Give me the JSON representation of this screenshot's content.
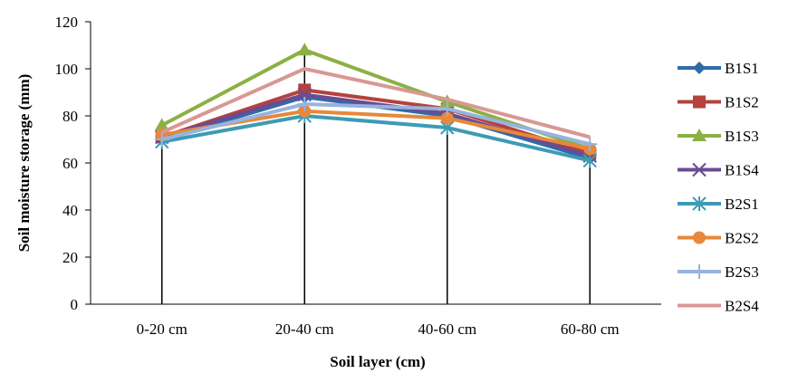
{
  "chart_data": {
    "type": "line",
    "title": "",
    "xlabel": "Soil layer (cm)",
    "ylabel": "Soil moisture storage (mm)",
    "categories": [
      "0-20 cm",
      "20-40 cm",
      "40-60 cm",
      "60-80 cm"
    ],
    "ylim": [
      0,
      120
    ],
    "yticks": [
      0,
      20,
      40,
      60,
      80,
      100,
      120
    ],
    "grid": false,
    "legend_position": "right",
    "drop_lines": true,
    "series": [
      {
        "name": "B1S1",
        "values": [
          70,
          88,
          80,
          62
        ],
        "color": "#2E6CA8",
        "marker": "diamond"
      },
      {
        "name": "B1S2",
        "values": [
          71,
          91,
          83,
          64
        ],
        "color": "#B5413E",
        "marker": "square"
      },
      {
        "name": "B1S3",
        "values": [
          76,
          108,
          86,
          66
        ],
        "color": "#8CB044",
        "marker": "triangle"
      },
      {
        "name": "B1S4",
        "values": [
          71,
          89,
          81,
          63
        ],
        "color": "#6A4C93",
        "marker": "x"
      },
      {
        "name": "B2S1",
        "values": [
          69,
          80,
          75,
          61
        ],
        "color": "#3D9BB5",
        "marker": "asterisk"
      },
      {
        "name": "B2S2",
        "values": [
          72,
          82,
          79,
          66
        ],
        "color": "#E8883A",
        "marker": "circle"
      },
      {
        "name": "B2S3",
        "values": [
          70,
          85,
          83,
          68
        ],
        "color": "#97B3DE",
        "marker": "plus"
      },
      {
        "name": "B2S4",
        "values": [
          73,
          100,
          87,
          71
        ],
        "color": "#D89894",
        "marker": "none"
      }
    ]
  }
}
